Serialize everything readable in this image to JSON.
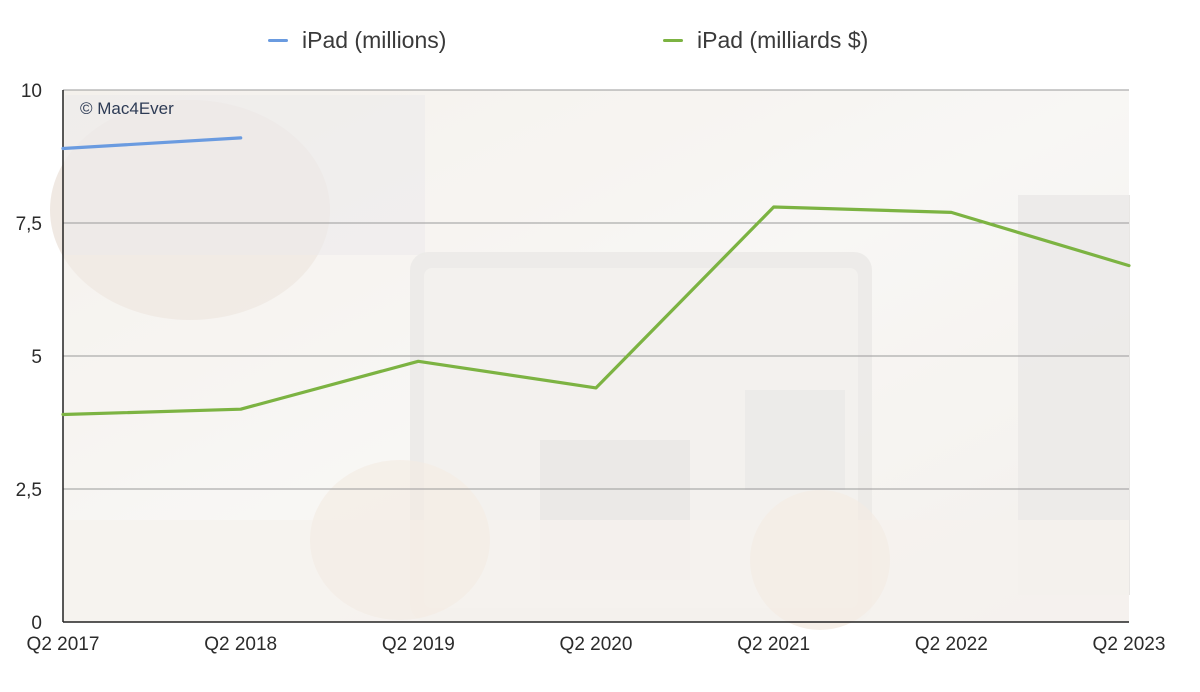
{
  "chart_data": {
    "type": "line",
    "title": "",
    "xlabel": "",
    "ylabel": "",
    "categories": [
      "Q2 2017",
      "Q2 2018",
      "Q2 2019",
      "Q2 2020",
      "Q2 2021",
      "Q2 2022",
      "Q2 2023"
    ],
    "series": [
      {
        "name": "iPad (millions)",
        "color": "#6a9be0",
        "values": [
          8.9,
          9.1,
          null,
          null,
          null,
          null,
          null
        ]
      },
      {
        "name": "iPad (milliards $)",
        "color": "#7cb342",
        "values": [
          3.9,
          4.0,
          4.9,
          4.4,
          7.8,
          7.7,
          6.7
        ]
      }
    ],
    "ylim": [
      0,
      10
    ],
    "yticks": [
      {
        "value": 0,
        "label": "0"
      },
      {
        "value": 2.5,
        "label": "2,5"
      },
      {
        "value": 5,
        "label": "5"
      },
      {
        "value": 7.5,
        "label": "7,5"
      },
      {
        "value": 10,
        "label": "10"
      }
    ],
    "grid": true,
    "legend_position": "top",
    "watermark": "© Mac4Ever",
    "background": "faded photo of hands holding an iPad in a workshop"
  }
}
